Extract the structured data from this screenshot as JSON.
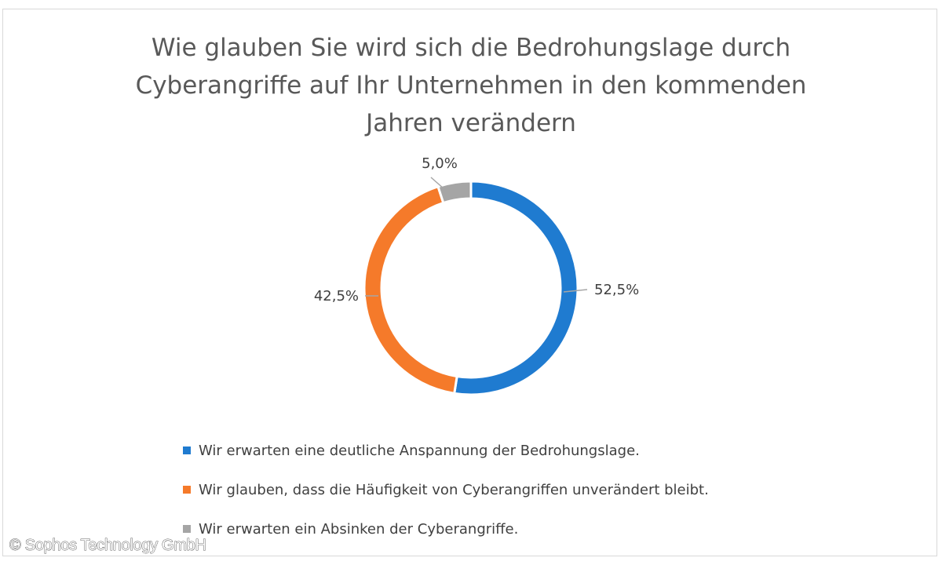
{
  "chart_data": {
    "type": "pie",
    "variant": "doughnut",
    "title": "Wie glauben Sie wird sich die Bedrohungslage durch Cyberangriffe auf Ihr Unternehmen in den kommenden Jahren verändern",
    "title_lines": [
      "Wie glauben Sie wird sich die Bedrohungslage durch",
      "Cyberangriffe auf Ihr Unternehmen in den kommenden",
      "Jahren verändern"
    ],
    "categories": [
      "Wir erwarten eine deutliche Anspannung der Bedrohungslage.",
      "Wir glauben, dass die Häufigkeit von Cyberangriffen unverändert bleibt.",
      "Wir erwarten ein Absinken der Cyberangriffe."
    ],
    "values": [
      52.5,
      42.5,
      5.0
    ],
    "data_labels": [
      "52,5%",
      "42,5%",
      "5,0%"
    ],
    "colors": [
      "#1f7bd0",
      "#f57a2a",
      "#a5a5a5"
    ],
    "legend_position": "bottom"
  },
  "copyright": "© Sophos Technology GmbH"
}
